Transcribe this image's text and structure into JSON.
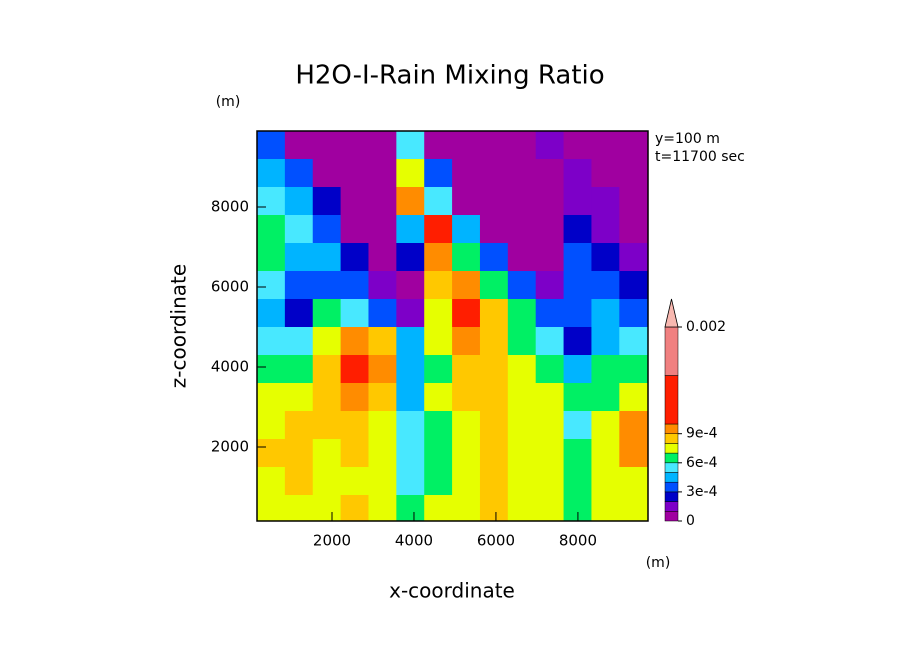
{
  "chart_data": {
    "type": "contour",
    "title": "H2O-I-Rain Mixing Ratio",
    "x_label": "x-coordinate",
    "y_label": "z-coordinate",
    "x_unit": "(m)",
    "y_unit": "(m)",
    "annotations": [
      "y=100 m",
      "t=11700 sec"
    ],
    "xlim": [
      170,
      9710
    ],
    "ylim": [
      150,
      9900
    ],
    "xticks": [
      2000,
      4000,
      6000,
      8000
    ],
    "yticks": [
      2000,
      4000,
      6000,
      8000
    ],
    "x": [
      510,
      1190,
      1870,
      2550,
      3230,
      3910,
      4590,
      5270,
      5950,
      6630,
      7310,
      7990,
      8670,
      9350
    ],
    "y": [
      9550,
      8850,
      8150,
      7450,
      6750,
      6050,
      5350,
      4650,
      3950,
      3250,
      2550,
      1850,
      1150,
      450
    ],
    "z": [
      [
        0.00035,
        5e-05,
        5e-05,
        5e-05,
        5e-05,
        0.00055,
        5e-05,
        5e-05,
        5e-05,
        5e-05,
        0.00015,
        5e-05,
        5e-05,
        5e-05
      ],
      [
        0.00045,
        0.00035,
        5e-05,
        5e-05,
        5e-05,
        0.00075,
        0.00035,
        5e-05,
        5e-05,
        5e-05,
        5e-05,
        0.00015,
        5e-05,
        5e-05
      ],
      [
        0.00055,
        0.00045,
        0.00025,
        5e-05,
        5e-05,
        0.00095,
        0.00055,
        5e-05,
        5e-05,
        5e-05,
        5e-05,
        0.00015,
        0.00015,
        5e-05
      ],
      [
        0.00065,
        0.00055,
        0.00035,
        5e-05,
        5e-05,
        0.00045,
        0.0012,
        0.00045,
        5e-05,
        5e-05,
        5e-05,
        0.00025,
        0.00015,
        5e-05
      ],
      [
        0.00065,
        0.00045,
        0.00045,
        0.00025,
        5e-05,
        0.00025,
        0.00095,
        0.00065,
        0.00035,
        5e-05,
        5e-05,
        0.00035,
        0.00025,
        0.00015
      ],
      [
        0.00055,
        0.00035,
        0.00035,
        0.00035,
        0.00015,
        5e-05,
        0.00085,
        0.00095,
        0.00065,
        0.00035,
        0.00015,
        0.00035,
        0.00035,
        0.00025
      ],
      [
        0.00045,
        0.00025,
        0.00065,
        0.00055,
        0.00035,
        0.00015,
        0.00075,
        0.0012,
        0.00085,
        0.00065,
        0.00035,
        0.00035,
        0.00045,
        0.00035
      ],
      [
        0.00055,
        0.00055,
        0.00075,
        0.00095,
        0.00085,
        0.00045,
        0.00075,
        0.00095,
        0.00085,
        0.00065,
        0.00055,
        0.00025,
        0.00045,
        0.00055
      ],
      [
        0.00065,
        0.00065,
        0.00085,
        0.0012,
        0.00095,
        0.00045,
        0.00065,
        0.00085,
        0.00085,
        0.00075,
        0.00065,
        0.00045,
        0.00065,
        0.00065
      ],
      [
        0.00075,
        0.00075,
        0.00085,
        0.00095,
        0.00085,
        0.00045,
        0.00075,
        0.00085,
        0.00085,
        0.00075,
        0.00075,
        0.00065,
        0.00065,
        0.00075
      ],
      [
        0.00075,
        0.00085,
        0.00085,
        0.00085,
        0.00075,
        0.00055,
        0.00065,
        0.00075,
        0.00085,
        0.00075,
        0.00075,
        0.00055,
        0.00075,
        0.00095
      ],
      [
        0.00085,
        0.00085,
        0.00075,
        0.00085,
        0.00075,
        0.00055,
        0.00065,
        0.00075,
        0.00085,
        0.00075,
        0.00075,
        0.00065,
        0.00075,
        0.00095
      ],
      [
        0.00075,
        0.00085,
        0.00075,
        0.00075,
        0.00075,
        0.00055,
        0.00065,
        0.00075,
        0.00085,
        0.00075,
        0.00075,
        0.00065,
        0.00075,
        0.00075
      ],
      [
        0.00075,
        0.00075,
        0.00075,
        0.00085,
        0.00075,
        0.00065,
        0.00075,
        0.00075,
        0.00085,
        0.00075,
        0.00075,
        0.00065,
        0.00075,
        0.00075
      ]
    ],
    "colorbar": {
      "levels": [
        0,
        0.0001,
        0.0002,
        0.0003,
        0.0004,
        0.0005,
        0.0006,
        0.0007,
        0.0008,
        0.0009,
        0.001,
        0.0015,
        0.002
      ],
      "colors": [
        "#a000a0",
        "#7d00c8",
        "#0000c8",
        "#0050ff",
        "#00b4ff",
        "#48e8ff",
        "#00f064",
        "#e6ff00",
        "#ffc800",
        "#ff8c00",
        "#ff1e00",
        "#f08080"
      ],
      "extend_color": "#f8b8b0",
      "ticks": [
        0,
        {
          "value": 0.0003,
          "label": "3e-4"
        },
        {
          "value": 0.0006,
          "label": "6e-4"
        },
        {
          "value": 0.0009,
          "label": "9e-4"
        },
        0.002
      ]
    }
  }
}
